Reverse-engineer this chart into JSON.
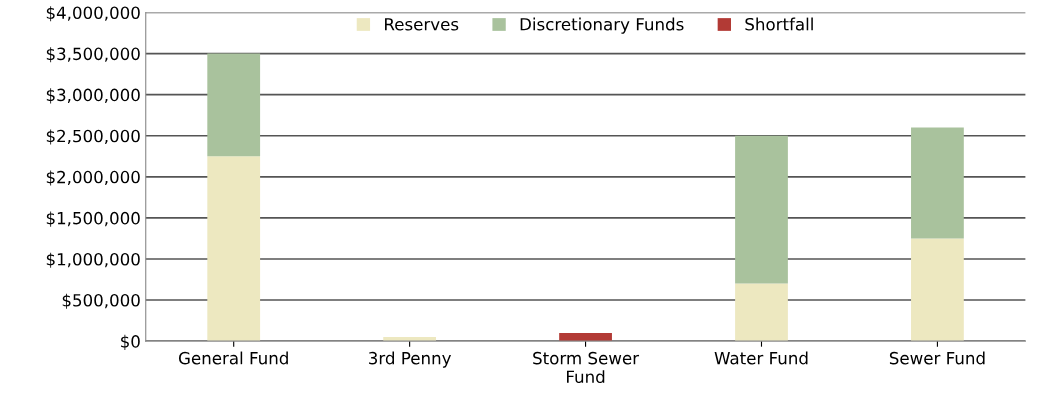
{
  "chart_data": {
    "type": "bar",
    "stacked": true,
    "categories": [
      "General Fund",
      "3rd Penny",
      "Storm Sewer\nFund",
      "Water Fund",
      "Sewer Fund"
    ],
    "series": [
      {
        "name": "Reserves",
        "color": "#ede8c0",
        "values": [
          2250000,
          50000,
          0,
          700000,
          1250000
        ]
      },
      {
        "name": "Discretionary Funds",
        "color": "#a9c29d",
        "values": [
          1250000,
          0,
          0,
          1800000,
          1350000
        ]
      },
      {
        "name": "Shortfall",
        "color": "#b23a35",
        "values": [
          0,
          0,
          100000,
          0,
          0
        ]
      }
    ],
    "ylim": [
      0,
      4000000
    ],
    "yticks": [
      {
        "value": 0,
        "label": "$0"
      },
      {
        "value": 500000,
        "label": "$500,000"
      },
      {
        "value": 1000000,
        "label": "$1,000,000"
      },
      {
        "value": 1500000,
        "label": "$1,500,000"
      },
      {
        "value": 2000000,
        "label": "$2,000,000"
      },
      {
        "value": 2500000,
        "label": "$2,500,000"
      },
      {
        "value": 3000000,
        "label": "$3,000,000"
      },
      {
        "value": 3500000,
        "label": "$3,500,000"
      },
      {
        "value": 4000000,
        "label": "$4,000,000"
      }
    ],
    "grid": "y",
    "legend": "top"
  }
}
